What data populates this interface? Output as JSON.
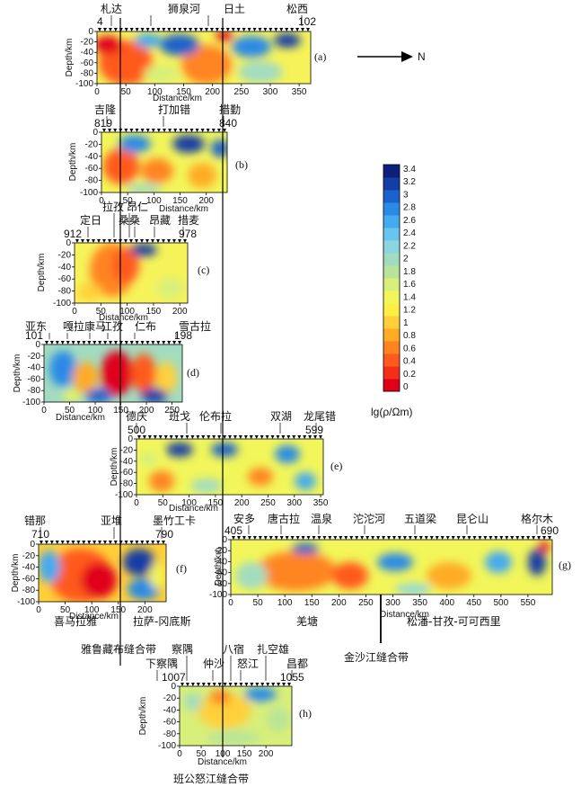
{
  "north": "N",
  "colorbar": {
    "ticks": [
      "3.4",
      "3.2",
      "3",
      "2.8",
      "2.6",
      "2.4",
      "2.2",
      "2",
      "1.8",
      "1.6",
      "1.4",
      "1.2",
      "1",
      "0.8",
      "0.6",
      "0.4",
      "0.2",
      "0"
    ],
    "label": "lg(ρ/Ωm)",
    "range": [
      0,
      3.4
    ],
    "colors": [
      "#e0001a",
      "#f2301a",
      "#ff5a1e",
      "#ff8420",
      "#ffab25",
      "#ffd03a",
      "#ffef45",
      "#f2f65a",
      "#d8ef7a",
      "#b8e498",
      "#a2dcc0",
      "#8cd6e2",
      "#68c6ee",
      "#45aaf0",
      "#2a8ae6",
      "#1b62cc",
      "#133ea6",
      "#0b1f7c"
    ]
  },
  "panels": [
    {
      "id": "a",
      "label": "(a)",
      "stations": [
        "4",
        "102"
      ],
      "places": [
        "札达",
        "狮泉河",
        "日土",
        "松西"
      ],
      "x_ticks": [
        "0",
        "50",
        "100",
        "150",
        "200",
        "250",
        "300",
        "350"
      ],
      "y_ticks": [
        "0",
        "-20",
        "-40",
        "-60",
        "-80",
        "-100"
      ],
      "xlabel": "Distance/km",
      "ylabel": "Depth/km"
    },
    {
      "id": "b",
      "label": "(b)",
      "stations": [
        "819",
        "840"
      ],
      "places": [
        "吉隆",
        "打加错",
        "措勤"
      ],
      "x_ticks": [
        "0",
        "50",
        "100",
        "150",
        "200"
      ],
      "y_ticks": [
        "0",
        "-20",
        "-40",
        "-60",
        "-80",
        "-100"
      ],
      "xlabel": "Distance/km",
      "ylabel": "Depth/km"
    },
    {
      "id": "c",
      "label": "(c)",
      "stations": [
        "912",
        "978"
      ],
      "places": [
        "定日",
        "拉孜",
        "昂仁",
        "桑桑",
        "昂藏",
        "措麦"
      ],
      "x_ticks": [
        "0",
        "50",
        "100",
        "150",
        "200"
      ],
      "y_ticks": [
        "0",
        "-20",
        "-40",
        "-60",
        "-80",
        "-100"
      ],
      "xlabel": "Distance/km",
      "ylabel": "Depth/km"
    },
    {
      "id": "d",
      "label": "(d)",
      "stations": [
        "101",
        "198"
      ],
      "places": [
        "亚东",
        "嘎拉",
        "康马",
        "江孜",
        "仁布",
        "雪古拉"
      ],
      "x_ticks": [
        "0",
        "50",
        "100",
        "150",
        "200",
        "250"
      ],
      "y_ticks": [
        "0",
        "-20",
        "-40",
        "-60",
        "-80",
        "-100"
      ],
      "xlabel": "Distance/km",
      "ylabel": "Depth/km"
    },
    {
      "id": "e",
      "label": "(e)",
      "stations": [
        "500",
        "599"
      ],
      "places": [
        "德庆",
        "班戈",
        "伦布拉",
        "双湖",
        "龙尾错"
      ],
      "x_ticks": [
        "0",
        "50",
        "100",
        "150",
        "200",
        "250",
        "300",
        "350"
      ],
      "y_ticks": [
        "0",
        "-20",
        "-40",
        "-60",
        "-80",
        "-100"
      ],
      "xlabel": "Distance/km",
      "ylabel": "Depth/km"
    },
    {
      "id": "f",
      "label": "(f)",
      "stations": [
        "710",
        "790"
      ],
      "places": [
        "错那",
        "亚堆",
        "墨竹工卡"
      ],
      "x_ticks": [
        "0",
        "50",
        "100",
        "150",
        "200"
      ],
      "y_ticks": [
        "0",
        "-20",
        "-40",
        "-60",
        "-80",
        "-100"
      ],
      "xlabel": "Distance/km",
      "ylabel": "Depth/km"
    },
    {
      "id": "g",
      "label": "(g)",
      "stations": [
        "405",
        "690"
      ],
      "places": [
        "安多",
        "唐古拉",
        "温泉",
        "沱沱河",
        "五道梁",
        "昆仑山",
        "格尔木"
      ],
      "x_ticks": [
        "0",
        "50",
        "100",
        "150",
        "200",
        "250",
        "300",
        "350",
        "400",
        "450",
        "500",
        "550"
      ],
      "y_ticks": [
        "0",
        "-20",
        "-40",
        "-60",
        "-80",
        "-100"
      ],
      "xlabel": "Distance/km",
      "ylabel": "Depth/km"
    },
    {
      "id": "h",
      "label": "(h)",
      "stations": [
        "1007",
        "1055"
      ],
      "places": [
        "察隅",
        "下察隅",
        "仲沙",
        "八宿",
        "怒江",
        "扎空雄",
        "昌都"
      ],
      "x_ticks": [
        "0",
        "50",
        "100",
        "150",
        "200"
      ],
      "y_ticks": [
        "0",
        "-20",
        "-40",
        "-60",
        "-80",
        "-100"
      ],
      "xlabel": "Distance/km",
      "ylabel": "Depth/km"
    }
  ],
  "terranes": [
    "喜马拉雅",
    "拉萨-冈底斯",
    "羌塘",
    "松潘-甘孜-可可西里"
  ],
  "sutures": [
    "雅鲁藏布缝合带",
    "金沙江缝合带",
    "班公怒江缝合带"
  ]
}
